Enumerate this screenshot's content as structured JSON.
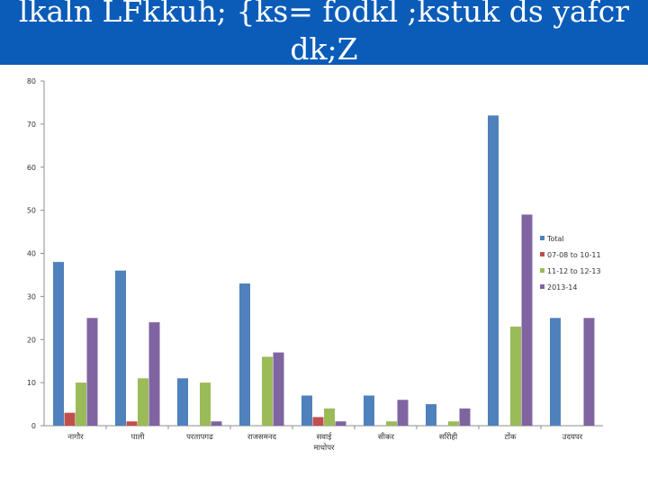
{
  "header": {
    "title": "lkaln LFkkuh; {ks= fodkl ;kstuk ds yafcr dk;Z"
  },
  "chart_data": {
    "type": "bar",
    "title": "",
    "xlabel": "",
    "ylabel": "",
    "ylim": [
      0,
      80
    ],
    "yticks": [
      "0",
      "10",
      "20",
      "30",
      "40",
      "50",
      "60",
      "70",
      "80"
    ],
    "grid": false,
    "legend_position": "right",
    "categories": [
      "नागौर",
      "पाली",
      "परतापगढ",
      "राजसमनद",
      "सवाई माधोपर",
      "सीकर",
      "सरिोही",
      "टोंक",
      "उदयपर"
    ],
    "series": [
      {
        "name": "Total",
        "color": "#4f81bd",
        "values": [
          38,
          36,
          11,
          33,
          7,
          7,
          5,
          72,
          25
        ]
      },
      {
        "name": "07-08 to 10-11",
        "color": "#c0504d",
        "values": [
          3,
          1,
          0,
          0,
          2,
          0,
          0,
          0,
          0
        ]
      },
      {
        "name": "11-12 to 12-13",
        "color": "#9bbb59",
        "values": [
          10,
          11,
          10,
          16,
          4,
          1,
          1,
          23,
          0
        ]
      },
      {
        "name": "2013-14",
        "color": "#8064a2",
        "values": [
          25,
          24,
          1,
          17,
          1,
          6,
          4,
          49,
          25
        ]
      }
    ]
  }
}
